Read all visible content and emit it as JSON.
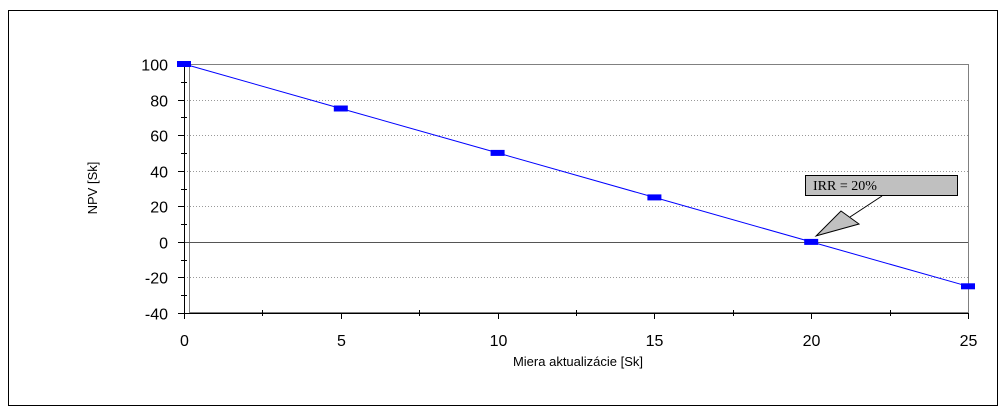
{
  "chart_data": {
    "type": "line",
    "title": "",
    "xlabel": "Miera aktualizácie [Sk]",
    "ylabel": "NPV [Sk]",
    "xlim": [
      0,
      25
    ],
    "ylim": [
      -40,
      100
    ],
    "x_ticks": [
      0,
      5,
      10,
      15,
      20,
      25
    ],
    "y_ticks": [
      -40,
      -20,
      0,
      20,
      40,
      60,
      80,
      100
    ],
    "x_tick_labels": [
      "0",
      "5",
      "10",
      "15",
      "20",
      "25"
    ],
    "y_tick_labels": [
      "-40",
      "-20",
      "0",
      "20",
      "40",
      "60",
      "80",
      "100"
    ],
    "grid": "horizontal dotted",
    "series": [
      {
        "x": [
          0,
          5,
          10,
          15,
          20,
          25
        ],
        "y": [
          100,
          75,
          50,
          25,
          0,
          -25
        ],
        "color": "#0000ff",
        "marker": "dash",
        "marker_color": "#0000ff"
      }
    ],
    "annotation": {
      "text": "IRR = 20%",
      "x": 20,
      "y": 0,
      "box_color": "#c0c0c0"
    }
  }
}
